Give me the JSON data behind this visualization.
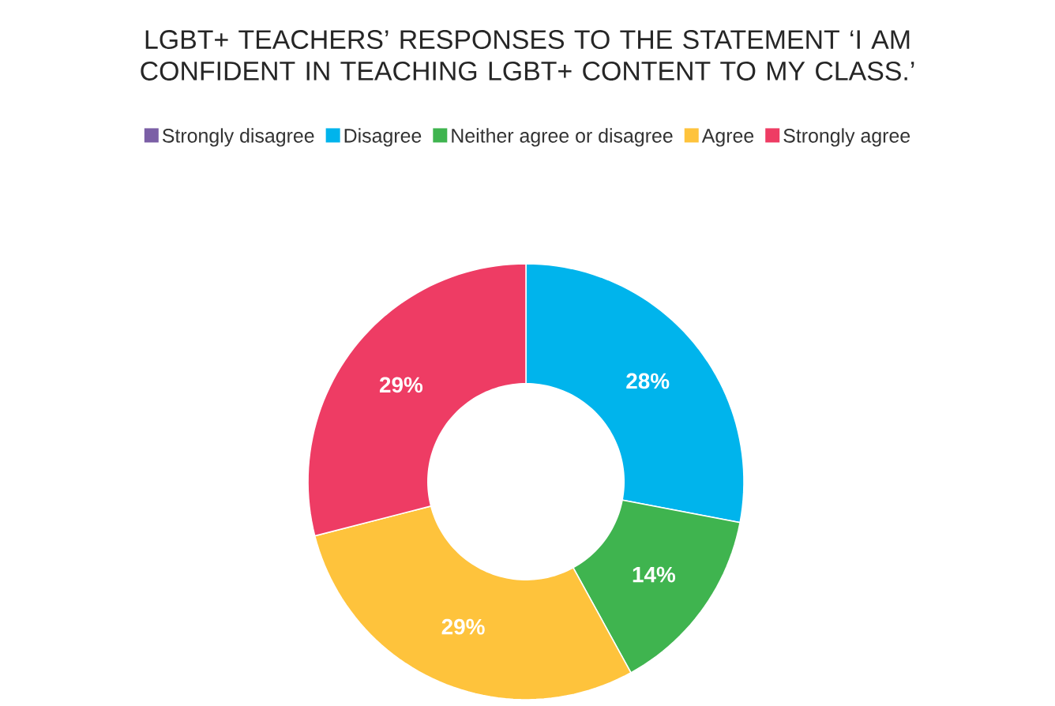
{
  "chart_data": {
    "type": "donut",
    "title": "LGBT+ TEACHERS’ RESPONSES TO THE STATEMENT ‘I AM CONFIDENT IN TEACHING LGBT+ CONTENT TO MY CLASS.’",
    "categories": [
      "Strongly disagree",
      "Disagree",
      "Neither agree or disagree",
      "Agree",
      "Strongly agree"
    ],
    "values": [
      0,
      28,
      14,
      29,
      29
    ],
    "value_labels": [
      null,
      "28%",
      "14%",
      "29%",
      "29%"
    ],
    "colors": [
      "#7b5fa6",
      "#00b4ec",
      "#3fb44f",
      "#fec33c",
      "#ee3c64"
    ],
    "legend": "top"
  }
}
